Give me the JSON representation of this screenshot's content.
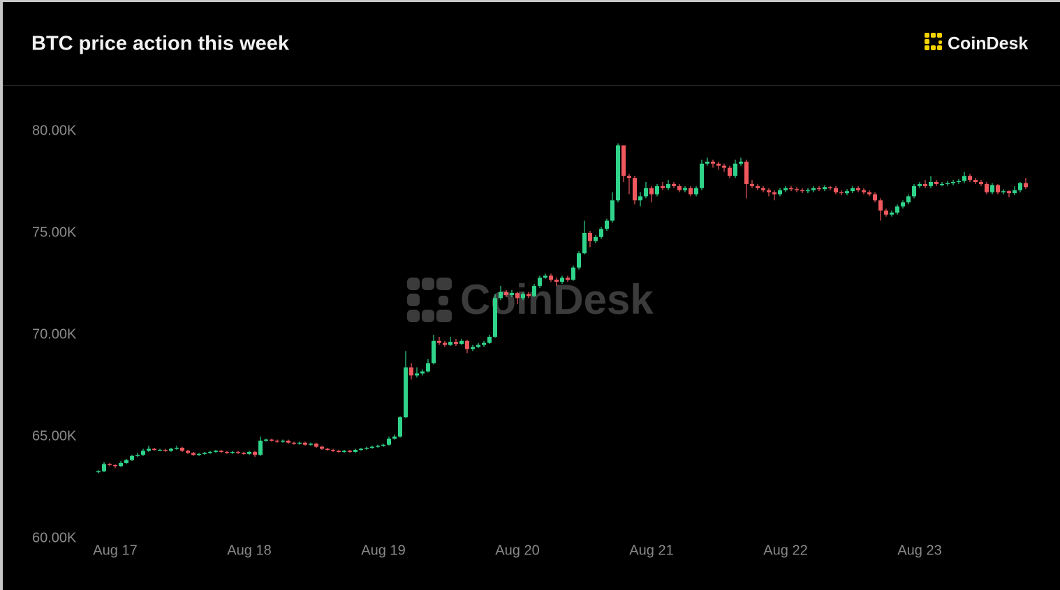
{
  "chart_data": {
    "type": "candlestick",
    "title": "BTC price action this week",
    "source": "CoinDesk",
    "up_color": "#2fd48a",
    "down_color": "#f0585e",
    "ylim": [
      60000,
      81500
    ],
    "yticks": [
      {
        "value": 60000,
        "label": "60.00K"
      },
      {
        "value": 65000,
        "label": "65.00K"
      },
      {
        "value": 70000,
        "label": "70.00K"
      },
      {
        "value": 75000,
        "label": "75.00K"
      },
      {
        "value": 80000,
        "label": "80.00K"
      }
    ],
    "categories": [
      null,
      null,
      null,
      "Aug 17",
      null,
      null,
      null,
      null,
      null,
      null,
      null,
      null,
      null,
      null,
      null,
      null,
      null,
      null,
      null,
      null,
      null,
      null,
      null,
      null,
      null,
      null,
      null,
      "Aug 18",
      null,
      null,
      null,
      null,
      null,
      null,
      null,
      null,
      null,
      null,
      null,
      null,
      null,
      null,
      null,
      null,
      null,
      null,
      null,
      null,
      null,
      null,
      null,
      "Aug 19",
      null,
      null,
      null,
      null,
      null,
      null,
      null,
      null,
      null,
      null,
      null,
      null,
      null,
      null,
      null,
      null,
      null,
      null,
      null,
      null,
      null,
      null,
      null,
      "Aug 20",
      null,
      null,
      null,
      null,
      null,
      null,
      null,
      null,
      null,
      null,
      null,
      null,
      null,
      null,
      null,
      null,
      null,
      null,
      null,
      null,
      null,
      null,
      null,
      "Aug 21",
      null,
      null,
      null,
      null,
      null,
      null,
      null,
      null,
      null,
      null,
      null,
      null,
      null,
      null,
      null,
      null,
      null,
      null,
      null,
      null,
      null,
      null,
      null,
      "Aug 22",
      null,
      null,
      null,
      null,
      null,
      null,
      null,
      null,
      null,
      null,
      null,
      null,
      null,
      null,
      null,
      null,
      null,
      null,
      null,
      null,
      null,
      null,
      null,
      "Aug 23",
      null,
      null,
      null,
      null,
      null,
      null,
      null,
      null,
      null,
      null,
      null,
      null,
      null,
      null,
      null,
      null,
      null,
      null,
      null
    ],
    "open": [
      63250,
      63300,
      63650,
      63600,
      63550,
      63700,
      63850,
      64050,
      64100,
      64300,
      64400,
      64350,
      64350,
      64300,
      64400,
      64450,
      64300,
      64200,
      64100,
      64150,
      64200,
      64250,
      64300,
      64250,
      64200,
      64250,
      64200,
      64150,
      64250,
      64100,
      64800,
      64850,
      64800,
      64750,
      64800,
      64700,
      64650,
      64700,
      64600,
      64650,
      64500,
      64400,
      64350,
      64300,
      64250,
      64300,
      64250,
      64350,
      64400,
      64450,
      64500,
      64550,
      64600,
      64900,
      65000,
      65950,
      68400,
      68000,
      68100,
      68200,
      68600,
      69700,
      69600,
      69500,
      69650,
      69550,
      69700,
      69300,
      69400,
      69500,
      69600,
      69900,
      71800,
      72100,
      71950,
      72050,
      71800,
      72000,
      71900,
      72400,
      72800,
      72900,
      72700,
      72600,
      72800,
      72700,
      73300,
      74000,
      75000,
      74600,
      74800,
      75200,
      75600,
      76600,
      79300,
      77800,
      77700,
      76600,
      76800,
      77200,
      76900,
      77300,
      77200,
      77400,
      77300,
      77100,
      77200,
      76900,
      77200,
      78400,
      78500,
      78400,
      78300,
      78200,
      77800,
      78400,
      78500,
      77400,
      77300,
      77200,
      77100,
      77000,
      76900,
      77100,
      77200,
      77150,
      77100,
      77050,
      77100,
      77200,
      77150,
      77250,
      77200,
      77000,
      76950,
      77050,
      77200,
      77100,
      77000,
      76900,
      76600,
      76100,
      75900,
      76000,
      76300,
      76500,
      76800,
      77300,
      77400,
      77300,
      77500,
      77400,
      77400,
      77450,
      77500,
      77550,
      77800,
      77600,
      77500,
      77400,
      77000,
      77350,
      77000,
      77050,
      76950,
      77100,
      77450
    ],
    "high": [
      63350,
      63750,
      63700,
      63650,
      63800,
      63900,
      64100,
      64200,
      64400,
      64550,
      64450,
      64400,
      64400,
      64450,
      64550,
      64500,
      64350,
      64250,
      64200,
      64250,
      64300,
      64350,
      64350,
      64300,
      64300,
      64300,
      64250,
      64300,
      64300,
      65000,
      64900,
      64900,
      64850,
      64850,
      64850,
      64750,
      64750,
      64750,
      64700,
      64700,
      64550,
      64450,
      64400,
      64350,
      64350,
      64350,
      64400,
      64450,
      64500,
      64550,
      64600,
      64650,
      65000,
      65100,
      66000,
      69200,
      68600,
      68400,
      68300,
      68800,
      70000,
      69900,
      69700,
      69900,
      69800,
      69800,
      69750,
      69500,
      69600,
      69700,
      70000,
      72000,
      72400,
      72200,
      72200,
      72100,
      72100,
      72100,
      72500,
      72900,
      73000,
      73000,
      72800,
      72900,
      72900,
      73400,
      74100,
      75600,
      75100,
      74900,
      75300,
      75700,
      77000,
      79400,
      79300,
      77900,
      77800,
      77000,
      77500,
      77300,
      77400,
      77500,
      77600,
      77500,
      77400,
      77300,
      77300,
      77300,
      78600,
      78700,
      78600,
      78500,
      78400,
      78300,
      78600,
      78700,
      78600,
      77600,
      77400,
      77300,
      77200,
      77100,
      77200,
      77300,
      77300,
      77250,
      77200,
      77200,
      77300,
      77300,
      77350,
      77300,
      77300,
      77100,
      77150,
      77300,
      77300,
      77200,
      77100,
      77000,
      76700,
      76200,
      76100,
      76400,
      76600,
      76900,
      77400,
      77500,
      77600,
      77800,
      77600,
      77500,
      77550,
      77600,
      77650,
      78000,
      77900,
      77700,
      77600,
      77500,
      77450,
      77400,
      77150,
      77100,
      77300,
      77500,
      77700
    ],
    "low": [
      63200,
      63250,
      63550,
      63450,
      63500,
      63650,
      63800,
      64000,
      64050,
      64250,
      64300,
      64300,
      64250,
      64250,
      64350,
      64250,
      64150,
      64050,
      64050,
      64100,
      64150,
      64200,
      64200,
      64150,
      64150,
      64150,
      64100,
      64100,
      64000,
      64050,
      64750,
      64750,
      64700,
      64700,
      64650,
      64600,
      64600,
      64550,
      64550,
      64450,
      64350,
      64300,
      64250,
      64200,
      64200,
      64200,
      64200,
      64300,
      64350,
      64400,
      64450,
      64500,
      64550,
      64850,
      64950,
      65900,
      67800,
      67900,
      68000,
      68150,
      68550,
      69500,
      69400,
      69450,
      69450,
      69500,
      69100,
      69200,
      69350,
      69400,
      69550,
      69850,
      71700,
      71850,
      71850,
      71500,
      71700,
      71800,
      71850,
      72300,
      72750,
      72600,
      72400,
      72500,
      72600,
      72650,
      73200,
      73950,
      74300,
      74500,
      74700,
      75100,
      75500,
      76500,
      77500,
      76900,
      76400,
      76300,
      76700,
      76500,
      76800,
      77100,
      77100,
      77200,
      77000,
      77000,
      76800,
      76800,
      77100,
      78300,
      78200,
      78100,
      78000,
      77700,
      77700,
      78300,
      76700,
      77200,
      77100,
      77000,
      76800,
      76600,
      76800,
      77000,
      77050,
      77000,
      76950,
      76950,
      77000,
      77050,
      77050,
      77100,
      76900,
      76850,
      76850,
      76950,
      77000,
      76900,
      76800,
      76500,
      75600,
      75800,
      75800,
      75900,
      76200,
      76400,
      76700,
      77200,
      77200,
      77200,
      77300,
      77300,
      77300,
      77350,
      77400,
      77450,
      77500,
      77400,
      77300,
      76900,
      76900,
      76900,
      76900,
      76750,
      76850,
      77000,
      77150
    ],
    "close": [
      63300,
      63650,
      63600,
      63550,
      63700,
      63850,
      64050,
      64100,
      64300,
      64400,
      64350,
      64350,
      64300,
      64400,
      64450,
      64300,
      64200,
      64100,
      64150,
      64200,
      64250,
      64300,
      64250,
      64200,
      64250,
      64200,
      64150,
      64250,
      64100,
      64800,
      64850,
      64800,
      64750,
      64800,
      64700,
      64650,
      64700,
      64600,
      64650,
      64500,
      64400,
      64350,
      64300,
      64250,
      64300,
      64250,
      64350,
      64400,
      64450,
      64500,
      64550,
      64600,
      64900,
      65000,
      65950,
      68400,
      68000,
      68100,
      68200,
      68600,
      69700,
      69600,
      69500,
      69650,
      69550,
      69700,
      69300,
      69400,
      69500,
      69600,
      69900,
      71800,
      72100,
      71950,
      72050,
      71800,
      72000,
      71900,
      72400,
      72800,
      72900,
      72700,
      72600,
      72800,
      72700,
      73300,
      74000,
      75000,
      74600,
      74800,
      75200,
      75600,
      76600,
      79300,
      77800,
      77700,
      76600,
      76800,
      77200,
      76900,
      77300,
      77200,
      77400,
      77300,
      77100,
      77200,
      76900,
      77200,
      78400,
      78500,
      78400,
      78300,
      78200,
      77800,
      78400,
      78500,
      77400,
      77300,
      77200,
      77100,
      77000,
      76900,
      77100,
      77200,
      77150,
      77100,
      77050,
      77100,
      77200,
      77150,
      77250,
      77200,
      77000,
      76950,
      77050,
      77200,
      77100,
      77000,
      76900,
      76600,
      76100,
      75900,
      76000,
      76300,
      76500,
      76800,
      77300,
      77400,
      77300,
      77500,
      77400,
      77400,
      77450,
      77500,
      77550,
      77800,
      77600,
      77500,
      77400,
      77000,
      77350,
      77000,
      77050,
      76950,
      77100,
      77450,
      77250
    ]
  }
}
